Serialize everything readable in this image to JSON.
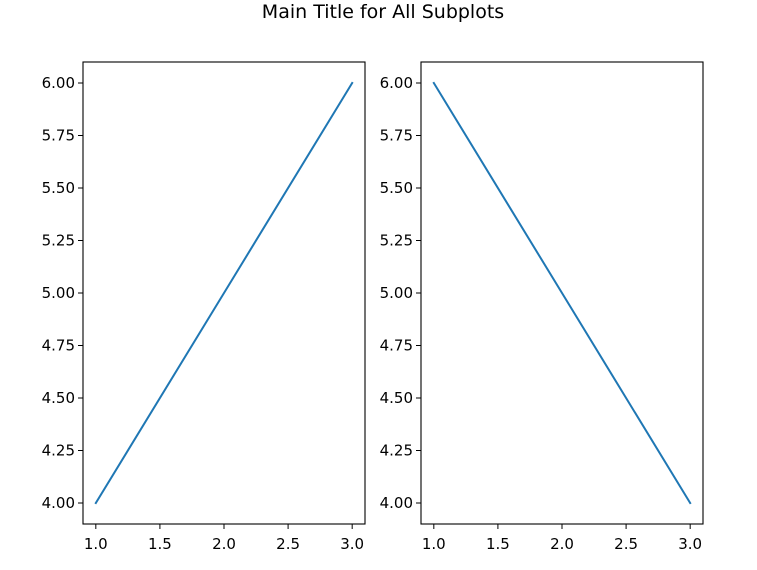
{
  "figure": {
    "suptitle": "Main Title for All Subplots"
  },
  "chart_data": [
    {
      "type": "line",
      "x": [
        1,
        2,
        3
      ],
      "series": [
        {
          "values": [
            4,
            5,
            6
          ],
          "color": "#1f77b4"
        }
      ],
      "xlim": [
        0.9,
        3.1
      ],
      "ylim": [
        3.9,
        6.1
      ],
      "xticks": [
        1.0,
        1.5,
        2.0,
        2.5,
        3.0
      ],
      "xtick_labels": [
        "1.0",
        "1.5",
        "2.0",
        "2.5",
        "3.0"
      ],
      "yticks": [
        4.0,
        4.25,
        4.5,
        4.75,
        5.0,
        5.25,
        5.5,
        5.75,
        6.0
      ],
      "ytick_labels": [
        "4.00",
        "4.25",
        "4.50",
        "4.75",
        "5.00",
        "5.25",
        "5.50",
        "5.75",
        "6.00"
      ],
      "grid": false
    },
    {
      "type": "line",
      "x": [
        1,
        2,
        3
      ],
      "series": [
        {
          "values": [
            6,
            5,
            4
          ],
          "color": "#1f77b4"
        }
      ],
      "xlim": [
        0.9,
        3.1
      ],
      "ylim": [
        3.9,
        6.1
      ],
      "xticks": [
        1.0,
        1.5,
        2.0,
        2.5,
        3.0
      ],
      "xtick_labels": [
        "1.0",
        "1.5",
        "2.0",
        "2.5",
        "3.0"
      ],
      "yticks": [
        4.0,
        4.25,
        4.5,
        4.75,
        5.0,
        5.25,
        5.5,
        5.75,
        6.0
      ],
      "ytick_labels": [
        "4.00",
        "4.25",
        "4.50",
        "4.75",
        "5.00",
        "5.25",
        "5.50",
        "5.75",
        "6.00"
      ],
      "grid": false
    }
  ]
}
